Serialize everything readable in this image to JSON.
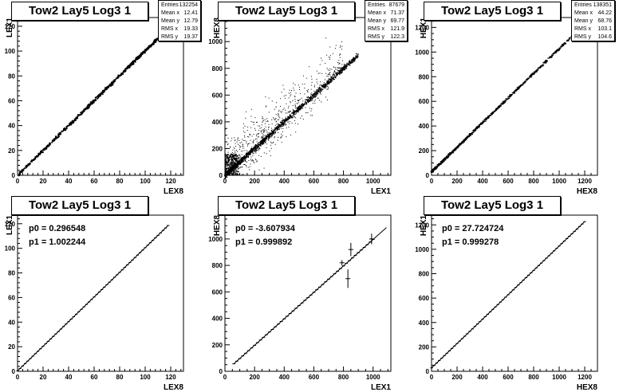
{
  "title": "Tow2 Lay5 Log3 1",
  "chart_data": [
    {
      "id": "p1",
      "type": "scatter",
      "title": "Tow2 Lay5 Log3 1",
      "xlabel": "LEX8",
      "ylabel": "LEX1",
      "xlim": [
        0,
        130
      ],
      "ylim": [
        0,
        127
      ],
      "xticks": [
        0,
        20,
        40,
        60,
        80,
        100,
        120
      ],
      "yticks": [
        0,
        20,
        40,
        60,
        80,
        100,
        120
      ],
      "xminor": 5,
      "yminor": 5,
      "grid": false,
      "stats": [
        [
          "Entries",
          "132254"
        ],
        [
          "Mean x",
          "12.41"
        ],
        [
          "Mean y",
          "12.79"
        ],
        [
          "RMS x",
          "19.33"
        ],
        [
          "RMS y",
          "19.37"
        ]
      ]
    },
    {
      "id": "p2",
      "type": "scatter",
      "title": "Tow2 Lay5 Log3 1",
      "xlabel": "LEX1",
      "ylabel": "HEX8",
      "xlim": [
        0,
        1120
      ],
      "ylim": [
        0,
        1180
      ],
      "xticks": [
        0,
        200,
        400,
        600,
        800,
        1000
      ],
      "yticks": [
        0,
        200,
        400,
        600,
        800,
        1000
      ],
      "xminor": 4,
      "yminor": 4,
      "grid": false,
      "stats": [
        [
          "Entries",
          "87679"
        ],
        [
          "Mean x",
          "71.37"
        ],
        [
          "Mean y",
          "69.77"
        ],
        [
          "RMS x",
          "121.9"
        ],
        [
          "RMS y",
          "122.3"
        ]
      ]
    },
    {
      "id": "p3",
      "type": "scatter",
      "title": "Tow2 Lay5 Log3 1",
      "xlabel": "HEX8",
      "ylabel": "HEX1",
      "xlim": [
        0,
        1300
      ],
      "ylim": [
        0,
        1280
      ],
      "xticks": [
        0,
        200,
        400,
        600,
        800,
        1000,
        1200
      ],
      "yticks": [
        0,
        200,
        400,
        600,
        800,
        1000,
        1200
      ],
      "xminor": 4,
      "yminor": 4,
      "grid": false,
      "stats": [
        [
          "Entries",
          "138351"
        ],
        [
          "Mean x",
          "44.22"
        ],
        [
          "Mean y",
          "68.76"
        ],
        [
          "RMS x",
          "103.1"
        ],
        [
          "RMS y",
          "104.6"
        ]
      ]
    },
    {
      "id": "p4",
      "type": "line",
      "title": "Tow2 Lay5 Log3 1",
      "xlabel": "LEX8",
      "ylabel": "LEX1",
      "xlim": [
        0,
        130
      ],
      "ylim": [
        0,
        127
      ],
      "xticks": [
        0,
        20,
        40,
        60,
        80,
        100,
        120
      ],
      "yticks": [
        0,
        20,
        40,
        60,
        80,
        100,
        120
      ],
      "xminor": 5,
      "yminor": 5,
      "grid": false,
      "fit": {
        "p0": "0.296548",
        "p1": "1.002244",
        "p0_value": 0.296548,
        "p1_value": 1.002244,
        "x_range": [
          0,
          118
        ]
      },
      "profile_range": [
        0,
        118
      ],
      "profile_step": 2,
      "errors": []
    },
    {
      "id": "p5",
      "type": "line",
      "title": "Tow2 Lay5 Log3 1",
      "xlabel": "LEX1",
      "ylabel": "HEX8",
      "xlim": [
        0,
        1120
      ],
      "ylim": [
        0,
        1180
      ],
      "xticks": [
        0,
        200,
        400,
        600,
        800,
        1000
      ],
      "yticks": [
        0,
        200,
        400,
        600,
        800,
        1000
      ],
      "xminor": 4,
      "yminor": 4,
      "grid": false,
      "fit": {
        "p0": "-3.607934",
        "p1": "0.999892",
        "p0_value": -3.607934,
        "p1_value": 0.999892,
        "x_range": [
          60,
          1090
        ]
      },
      "profile_range": [
        60,
        1000
      ],
      "profile_step": 20,
      "errors": [
        [
          790,
          820,
          20
        ],
        [
          830,
          700,
          70
        ],
        [
          850,
          920,
          50
        ],
        [
          990,
          1000,
          40
        ]
      ]
    },
    {
      "id": "p6",
      "type": "line",
      "title": "Tow2 Lay5 Log3 1",
      "xlabel": "HEX8",
      "ylabel": "HEX1",
      "xlim": [
        0,
        1300
      ],
      "ylim": [
        0,
        1280
      ],
      "xticks": [
        0,
        200,
        400,
        600,
        800,
        1000,
        1200
      ],
      "yticks": [
        0,
        200,
        400,
        600,
        800,
        1000,
        1200
      ],
      "xminor": 4,
      "yminor": 4,
      "grid": false,
      "fit": {
        "p0": "27.724724",
        "p1": "0.999278",
        "p0_value": 27.724724,
        "p1_value": 0.999278,
        "x_range": [
          0,
          1200
        ]
      },
      "profile_range": [
        0,
        1200
      ],
      "profile_step": 20,
      "errors": []
    }
  ]
}
